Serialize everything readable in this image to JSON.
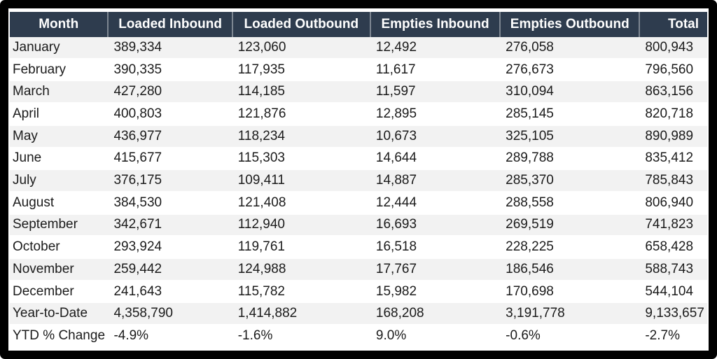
{
  "colors": {
    "header_bg": "#2e3c4e",
    "header_fg": "#ffffff",
    "stripe_bg": "#f2f2f2",
    "frame": "#000000",
    "body_text": "#1b1b1b"
  },
  "chart_data": {
    "type": "table",
    "columns": [
      "Month",
      "Loaded Inbound",
      "Loaded Outbound",
      "Empties Inbound",
      "Empties Outbound",
      "Total"
    ],
    "rows": [
      [
        "January",
        "389,334",
        "123,060",
        "12,492",
        "276,058",
        "800,943"
      ],
      [
        "February",
        "390,335",
        "117,935",
        "11,617",
        "276,673",
        "796,560"
      ],
      [
        "March",
        "427,280",
        "114,185",
        "11,597",
        "310,094",
        "863,156"
      ],
      [
        "April",
        "400,803",
        "121,876",
        "12,895",
        "285,145",
        "820,718"
      ],
      [
        "May",
        "436,977",
        "118,234",
        "10,673",
        "325,105",
        "890,989"
      ],
      [
        "June",
        "415,677",
        "115,303",
        "14,644",
        "289,788",
        "835,412"
      ],
      [
        "July",
        "376,175",
        "109,411",
        "14,887",
        "285,370",
        "785,843"
      ],
      [
        "August",
        "384,530",
        "121,408",
        "12,444",
        "288,558",
        "806,940"
      ],
      [
        "September",
        "342,671",
        "112,940",
        "16,693",
        "269,519",
        "741,823"
      ],
      [
        "October",
        "293,924",
        "119,761",
        "16,518",
        "228,225",
        "658,428"
      ],
      [
        "November",
        "259,442",
        "124,988",
        "17,767",
        "186,546",
        "588,743"
      ],
      [
        "December",
        "241,643",
        "115,782",
        "15,982",
        "170,698",
        "544,104"
      ],
      [
        "Year-to-Date",
        "4,358,790",
        "1,414,882",
        "168,208",
        "3,191,778",
        "9,133,657"
      ],
      [
        "YTD % Change",
        "-4.9%",
        "-1.6%",
        "9.0%",
        "-0.6%",
        "-2.7%"
      ]
    ]
  }
}
